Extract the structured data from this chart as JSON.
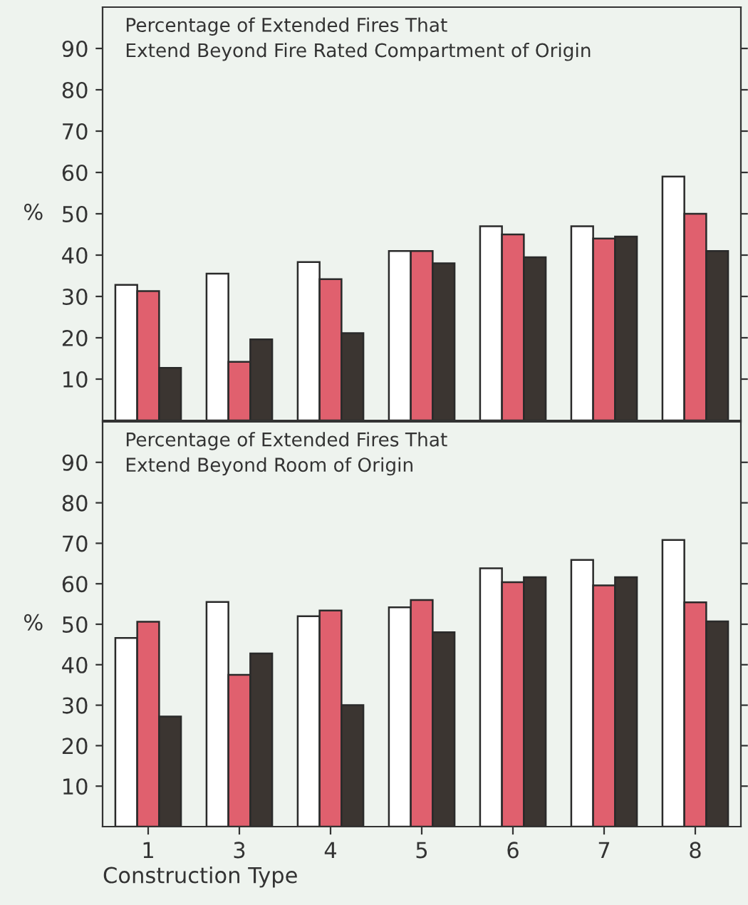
{
  "chart_data": [
    {
      "type": "bar",
      "title": "Percentage of Extended Fires That\nExtend Beyond Fire Rated Compartment of Origin",
      "ylabel": "%",
      "categories": [
        "1",
        "3",
        "4",
        "5",
        "6",
        "7",
        "8"
      ],
      "series": [
        {
          "color": "#ffffff",
          "values": [
            32.8,
            35.5,
            38.3,
            41,
            47,
            47,
            59
          ]
        },
        {
          "color": "#e0606e",
          "values": [
            31.3,
            14.2,
            34.2,
            41,
            45,
            44,
            50
          ]
        },
        {
          "color": "#3b3531",
          "values": [
            12.7,
            19.6,
            21.1,
            38,
            39.5,
            44.5,
            41
          ]
        }
      ],
      "ylim": [
        0,
        100
      ],
      "yticks": [
        10,
        20,
        30,
        40,
        50,
        60,
        70,
        80,
        90
      ],
      "tick_labels": "y",
      "grid": false
    },
    {
      "type": "bar",
      "title": "Percentage of Extended Fires That\nExtend Beyond Room of Origin",
      "ylabel": "%",
      "xlabel": "Construction Type",
      "categories": [
        "1",
        "3",
        "4",
        "5",
        "6",
        "7",
        "8"
      ],
      "series": [
        {
          "color": "#ffffff",
          "values": [
            46.6,
            55.5,
            52,
            54.2,
            63.8,
            65.9,
            70.8
          ]
        },
        {
          "color": "#e0606e",
          "values": [
            50.6,
            37.5,
            53.4,
            56,
            60.4,
            59.6,
            55.4
          ]
        },
        {
          "color": "#3b3531",
          "values": [
            27.2,
            42.8,
            30,
            48,
            61.6,
            61.6,
            50.7
          ]
        }
      ],
      "ylim": [
        0,
        100
      ],
      "yticks": [
        10,
        20,
        30,
        40,
        50,
        60,
        70,
        80,
        90
      ],
      "grid": false
    }
  ]
}
